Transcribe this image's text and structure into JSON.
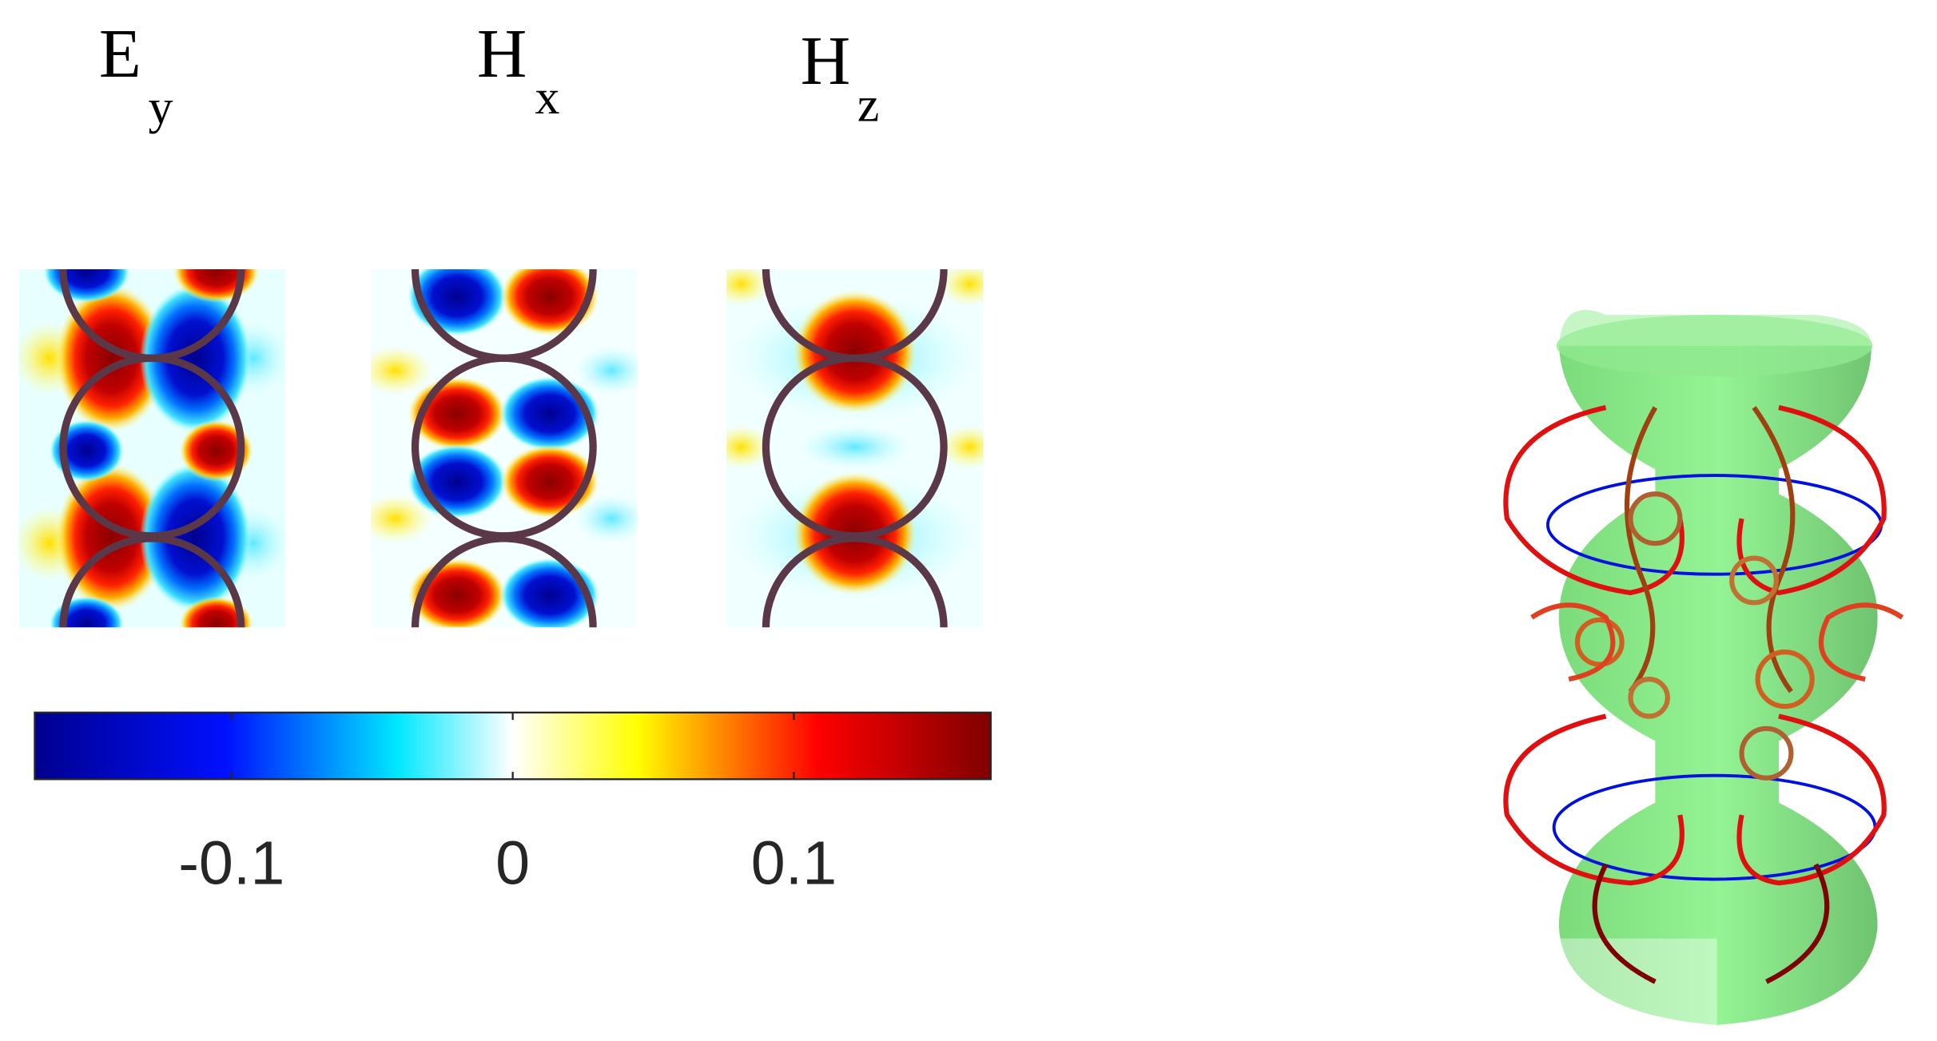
{
  "panels": [
    {
      "label": "E",
      "subscript": "y"
    },
    {
      "label": "H",
      "subscript": "x"
    },
    {
      "label": "H",
      "subscript": "z"
    }
  ],
  "colorbar": {
    "lim": [
      -0.17,
      0.17
    ],
    "ticks": [
      -0.1,
      0,
      0.1
    ]
  }
}
